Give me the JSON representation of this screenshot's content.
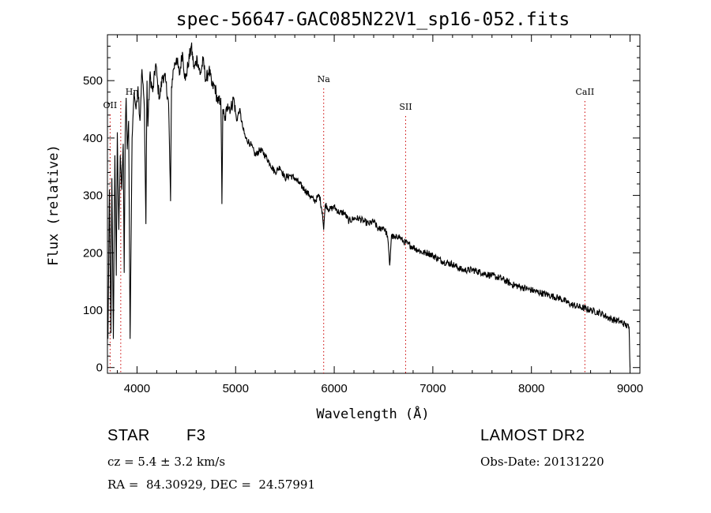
{
  "chart_data": {
    "type": "line",
    "title": "spec-56647-GAC085N22V1_sp16-052.fits",
    "xlabel": "Wavelength (Å)",
    "ylabel": "Flux (relative)",
    "xlim": [
      3700,
      9100
    ],
    "ylim": [
      -10,
      580
    ],
    "xticks": [
      4000,
      5000,
      6000,
      7000,
      8000,
      9000
    ],
    "xtick_labels": [
      "4000",
      "5000",
      "6000",
      "7000",
      "8000",
      "9000"
    ],
    "yticks": [
      0,
      100,
      200,
      300,
      400,
      500
    ],
    "ytick_labels": [
      "0",
      "100",
      "200",
      "300",
      "400",
      "500"
    ],
    "grid": false,
    "series": [
      {
        "x": [
          3705,
          3720,
          3735,
          3745,
          3760,
          3775,
          3790,
          3800,
          3815,
          3830,
          3845,
          3860,
          3870,
          3880,
          3890,
          3900,
          3915,
          3930,
          3950,
          3970,
          3990,
          4010,
          4030,
          4050,
          4075,
          4090,
          4101,
          4110,
          4130,
          4160,
          4190,
          4210,
          4230,
          4260,
          4290,
          4320,
          4340,
          4350,
          4370,
          4400,
          4430,
          4460,
          4490,
          4520,
          4550,
          4580,
          4610,
          4640,
          4670,
          4700,
          4730,
          4760,
          4790,
          4820,
          4850,
          4861,
          4870,
          4890,
          4920,
          4950,
          4980,
          5010,
          5040,
          5070,
          5100,
          5150,
          5200,
          5250,
          5300,
          5350,
          5400,
          5450,
          5500,
          5550,
          5600,
          5650,
          5700,
          5750,
          5800,
          5850,
          5880,
          5893,
          5910,
          5950,
          6000,
          6050,
          6100,
          6150,
          6200,
          6250,
          6300,
          6350,
          6400,
          6450,
          6500,
          6540,
          6563,
          6580,
          6620,
          6650,
          6700,
          6750,
          6800,
          6850,
          6900,
          6950,
          7000,
          7100,
          7200,
          7300,
          7400,
          7500,
          7600,
          7700,
          7800,
          7900,
          8000,
          8100,
          8200,
          8300,
          8400,
          8500,
          8600,
          8700,
          8800,
          8900,
          8950,
          8990,
          9000
        ],
        "y": [
          50,
          310,
          60,
          330,
          50,
          370,
          160,
          410,
          240,
          370,
          310,
          390,
          165,
          410,
          470,
          380,
          430,
          50,
          400,
          480,
          450,
          490,
          430,
          520,
          450,
          250,
          500,
          420,
          510,
          480,
          530,
          490,
          470,
          510,
          500,
          460,
          290,
          490,
          520,
          540,
          510,
          550,
          500,
          530,
          560,
          520,
          540,
          510,
          535,
          500,
          520,
          490,
          490,
          460,
          470,
          285,
          450,
          430,
          460,
          450,
          470,
          430,
          450,
          420,
          400,
          390,
          370,
          380,
          370,
          355,
          340,
          350,
          330,
          335,
          330,
          320,
          310,
          300,
          290,
          300,
          270,
          240,
          285,
          275,
          280,
          270,
          270,
          255,
          260,
          260,
          255,
          250,
          255,
          240,
          245,
          230,
          178,
          230,
          225,
          230,
          220,
          215,
          210,
          205,
          200,
          200,
          195,
          185,
          180,
          170,
          170,
          165,
          160,
          155,
          145,
          140,
          135,
          130,
          125,
          120,
          110,
          105,
          100,
          95,
          85,
          80,
          75,
          70,
          0
        ]
      }
    ],
    "annotations": [
      {
        "label": "OII",
        "x": 3727
      },
      {
        "label": "Hη",
        "x": 3835
      },
      {
        "label": "Na",
        "x": 5893
      },
      {
        "label": "SII",
        "x": 6724
      },
      {
        "label": "CaII",
        "x": 8542
      }
    ],
    "line_color": "#000000",
    "marker_color": "#cc0000"
  },
  "info": {
    "class": "STAR",
    "subclass": "F3",
    "survey": "LAMOST DR2",
    "cz": "cz = 5.4 ± 3.2 km/s",
    "obs_date": "Obs-Date: 20131220",
    "radec": "RA =  84.30929, DEC =  24.57991"
  }
}
